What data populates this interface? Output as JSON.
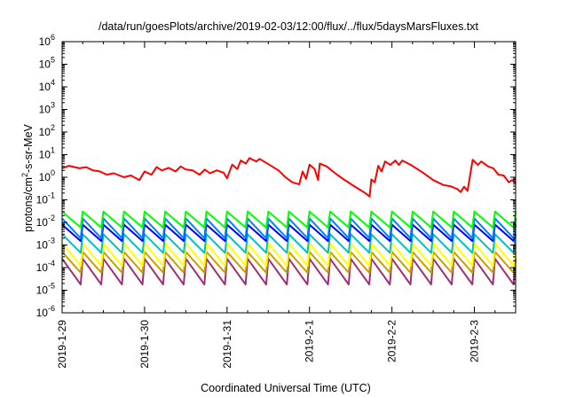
{
  "chart_data": {
    "type": "line",
    "title": "/data/run/goesPlots/archive/2019-02-03/12:00/flux/../flux/5daysMarsFluxes.txt",
    "xlabel": "Coordinated Universal Time (UTC)",
    "ylabel": {
      "prefix": "protons/cm",
      "sup": "2",
      "suffix": "-s-sr-MeV"
    },
    "yscale": "log",
    "ylim": [
      1e-06,
      1000000.0
    ],
    "xlim": [
      "2019-01-29 00:00",
      "2019-02-03 12:00"
    ],
    "x_ticks": [
      "2019-1-29",
      "2019-1-30",
      "2019-1-31",
      "2019-2-1",
      "2019-2-2",
      "2019-2-3"
    ],
    "y_ticks": [
      {
        "base": "10",
        "exp": "-6"
      },
      {
        "base": "10",
        "exp": "-5"
      },
      {
        "base": "10",
        "exp": "-4"
      },
      {
        "base": "10",
        "exp": "-3"
      },
      {
        "base": "10",
        "exp": "-2"
      },
      {
        "base": "10",
        "exp": "-1"
      },
      {
        "base": "10",
        "exp": "0"
      },
      {
        "base": "10",
        "exp": "1"
      },
      {
        "base": "10",
        "exp": "2"
      },
      {
        "base": "10",
        "exp": "3"
      },
      {
        "base": "10",
        "exp": "4"
      },
      {
        "base": "10",
        "exp": "5"
      },
      {
        "base": "10",
        "exp": "6"
      }
    ],
    "grid": false,
    "legend": "none",
    "sawtooth_period_days": 0.25,
    "series": [
      {
        "color": "#ff0000",
        "points": [
          [
            "2019-01-29 00:00",
            2.5
          ],
          [
            "2019-01-29 02:00",
            3.2
          ],
          [
            "2019-01-29 05:00",
            2.5
          ],
          [
            "2019-01-29 07:00",
            2.8
          ],
          [
            "2019-01-29 09:00",
            2.0
          ],
          [
            "2019-01-29 11:00",
            1.8
          ],
          [
            "2019-01-29 13:00",
            1.3
          ],
          [
            "2019-01-29 15:00",
            1.5
          ],
          [
            "2019-01-29 18:00",
            1.0
          ],
          [
            "2019-01-29 20:00",
            1.2
          ],
          [
            "2019-01-29 22:30",
            0.75
          ],
          [
            "2019-01-30 00:00",
            1.8
          ],
          [
            "2019-01-30 02:00",
            1.3
          ],
          [
            "2019-01-30 03:30",
            2.8
          ],
          [
            "2019-01-30 05:00",
            2.0
          ],
          [
            "2019-01-30 07:00",
            2.6
          ],
          [
            "2019-01-30 09:00",
            1.8
          ],
          [
            "2019-01-30 10:30",
            3.0
          ],
          [
            "2019-01-30 12:00",
            2.2
          ],
          [
            "2019-01-30 14:00",
            2.0
          ],
          [
            "2019-01-30 16:00",
            1.3
          ],
          [
            "2019-01-30 17:30",
            2.2
          ],
          [
            "2019-01-30 19:00",
            1.5
          ],
          [
            "2019-01-30 21:00",
            2.0
          ],
          [
            "2019-01-30 23:00",
            1.6
          ],
          [
            "2019-01-31 00:00",
            0.9
          ],
          [
            "2019-01-31 01:30",
            3.6
          ],
          [
            "2019-01-31 03:00",
            2.3
          ],
          [
            "2019-01-31 04:00",
            5.5
          ],
          [
            "2019-01-31 05:30",
            4.0
          ],
          [
            "2019-01-31 06:30",
            7.0
          ],
          [
            "2019-01-31 08:30",
            5.0
          ],
          [
            "2019-01-31 09:30",
            6.5
          ],
          [
            "2019-01-31 12:00",
            3.8
          ],
          [
            "2019-01-31 15:00",
            2.0
          ],
          [
            "2019-01-31 17:00",
            1.0
          ],
          [
            "2019-01-31 19:00",
            0.6
          ],
          [
            "2019-01-31 21:00",
            0.48
          ],
          [
            "2019-01-31 22:00",
            1.8
          ],
          [
            "2019-01-31 23:00",
            0.85
          ],
          [
            "2019-02-01 00:00",
            3.6
          ],
          [
            "2019-02-01 01:30",
            2.3
          ],
          [
            "2019-02-01 02:30",
            0.75
          ],
          [
            "2019-02-01 03:00",
            4.0
          ],
          [
            "2019-02-01 05:00",
            3.0
          ],
          [
            "2019-02-01 08:00",
            1.3
          ],
          [
            "2019-02-01 10:00",
            0.8
          ],
          [
            "2019-02-01 13:00",
            0.4
          ],
          [
            "2019-02-01 16:00",
            0.21
          ],
          [
            "2019-02-01 17:30",
            0.14
          ],
          [
            "2019-02-01 18:00",
            0.8
          ],
          [
            "2019-02-01 19:00",
            0.6
          ],
          [
            "2019-02-01 20:00",
            3.2
          ],
          [
            "2019-02-01 21:00",
            1.8
          ],
          [
            "2019-02-01 22:00",
            5.0
          ],
          [
            "2019-02-01 23:30",
            3.5
          ],
          [
            "2019-02-02 01:00",
            5.5
          ],
          [
            "2019-02-02 02:00",
            3.5
          ],
          [
            "2019-02-02 03:00",
            5.5
          ],
          [
            "2019-02-02 05:30",
            3.5
          ],
          [
            "2019-02-02 09:00",
            1.6
          ],
          [
            "2019-02-02 12:00",
            0.75
          ],
          [
            "2019-02-02 15:00",
            0.45
          ],
          [
            "2019-02-02 17:00",
            0.4
          ],
          [
            "2019-02-02 19:00",
            0.3
          ],
          [
            "2019-02-02 20:00",
            0.22
          ],
          [
            "2019-02-02 21:00",
            0.38
          ],
          [
            "2019-02-02 22:00",
            0.25
          ],
          [
            "2019-02-02 23:30",
            6.0
          ],
          [
            "2019-02-03 01:00",
            3.5
          ],
          [
            "2019-02-03 02:00",
            5.0
          ],
          [
            "2019-02-03 04:00",
            3.0
          ],
          [
            "2019-02-03 05:30",
            2.5
          ],
          [
            "2019-02-03 07:00",
            1.3
          ],
          [
            "2019-02-03 08:30",
            1.2
          ],
          [
            "2019-02-03 10:00",
            0.6
          ],
          [
            "2019-02-03 11:00",
            0.75
          ],
          [
            "2019-02-03 12:00",
            0.55
          ]
        ]
      },
      {
        "color": "#00ff00",
        "peak": 0.03,
        "trough": 0.006
      },
      {
        "color": "#0080ff",
        "peak": 0.015,
        "trough": 0.002
      },
      {
        "color": "#0000ff",
        "peak": 0.008,
        "trough": 0.0015
      },
      {
        "color": "#00c0c0",
        "peak": 0.003,
        "trough": 0.00045
      },
      {
        "color": "#ffff00",
        "peak": 0.0012,
        "trough": 0.00012
      },
      {
        "color": "#c8a000",
        "peak": 0.0005,
        "trough": 6e-05
      },
      {
        "color": "#a03070",
        "peak": 0.00025,
        "trough": 1.8e-05
      }
    ]
  }
}
